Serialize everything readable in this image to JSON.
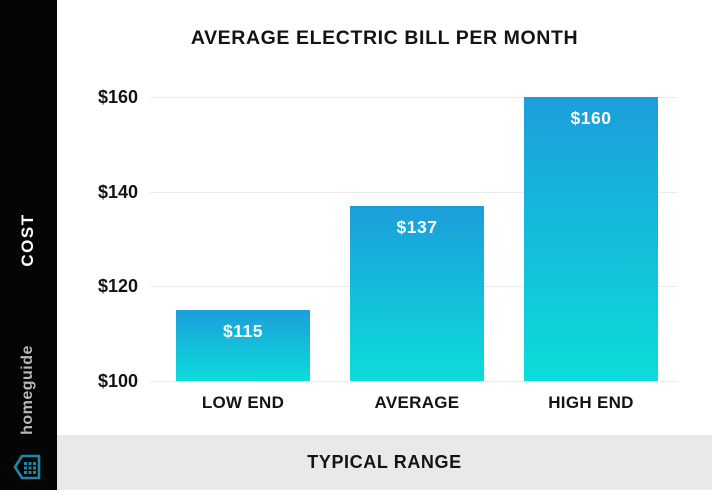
{
  "sidebar": {
    "cost_label": "COST",
    "brand": "homeguide",
    "bg_color": "#050505",
    "cost_color": "#ffffff",
    "brand_color": "#b9b9b9",
    "logo_color": "#1f86a8"
  },
  "chart_data": {
    "type": "bar",
    "title": "AVERAGE ELECTRIC BILL PER MONTH",
    "categories": [
      "LOW END",
      "AVERAGE",
      "HIGH END"
    ],
    "values": [
      115,
      137,
      160
    ],
    "value_labels": [
      "$115",
      "$137",
      "$160"
    ],
    "y_ticks": [
      "$160",
      "$140",
      "$120",
      "$100"
    ],
    "ylabel": "COST",
    "xlabel": "TYPICAL RANGE",
    "ylim": [
      100,
      160
    ],
    "grid": true,
    "legend": "none",
    "bar_gradient_top": "#1C9EDB",
    "bar_gradient_bottom": "#0CDCD9",
    "gridline_color": "#ececec"
  },
  "footer": {
    "label": "TYPICAL RANGE",
    "bg_color": "#e9e9e9"
  }
}
